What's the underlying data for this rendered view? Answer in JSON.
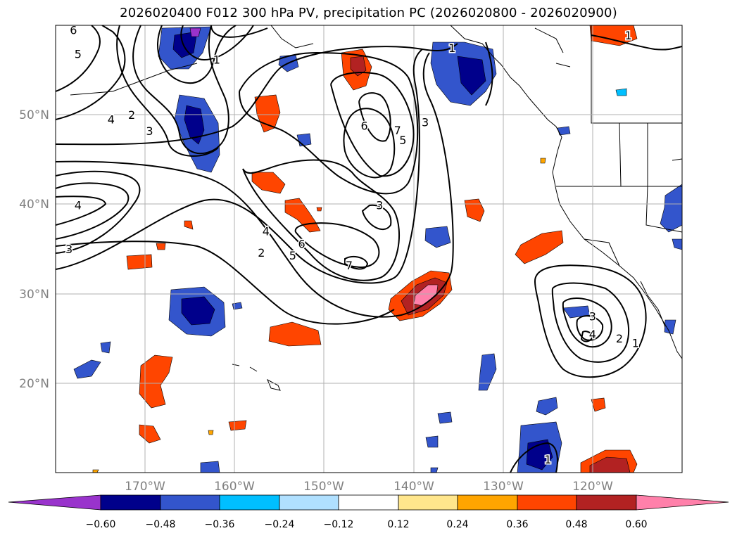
{
  "title": "2026020400 F012 300 hPa PV, precipitation PC (2026020800 - 2026020900)",
  "map": {
    "projection": "plate carree",
    "lon_range": [
      -180,
      -110
    ],
    "lat_range": [
      10,
      60
    ],
    "lon_ticks": [
      {
        "lon": -170,
        "label": "170°W"
      },
      {
        "lon": -160,
        "label": "160°W"
      },
      {
        "lon": -150,
        "label": "150°W"
      },
      {
        "lon": -140,
        "label": "140°W"
      },
      {
        "lon": -130,
        "label": "130°W"
      },
      {
        "lon": -120,
        "label": "120°W"
      }
    ],
    "lat_ticks": [
      {
        "lat": 20,
        "label": "20°N"
      },
      {
        "lat": 30,
        "label": "30°N"
      },
      {
        "lat": 40,
        "label": "40°N"
      },
      {
        "lat": 50,
        "label": "50°N"
      }
    ],
    "gridline_color": "#b0b0b0",
    "pv_contour_color": "#000000",
    "pv_contour_labels": [
      {
        "text": "6",
        "lon": -178,
        "lat": 59.5
      },
      {
        "text": "5",
        "lon": -177.5,
        "lat": 56.8
      },
      {
        "text": "1",
        "lon": -162,
        "lat": 56.2
      },
      {
        "text": "2",
        "lon": -171.5,
        "lat": 50
      },
      {
        "text": "4",
        "lon": -173.8,
        "lat": 49.5
      },
      {
        "text": "3",
        "lon": -169.5,
        "lat": 48.2
      },
      {
        "text": "4",
        "lon": -177.5,
        "lat": 39.9
      },
      {
        "text": "3",
        "lon": -178.5,
        "lat": 35
      },
      {
        "text": "4",
        "lon": -156.5,
        "lat": 37
      },
      {
        "text": "2",
        "lon": -157,
        "lat": 34.6
      },
      {
        "text": "5",
        "lon": -153.5,
        "lat": 34.3
      },
      {
        "text": "6",
        "lon": -152.5,
        "lat": 35.6
      },
      {
        "text": "7",
        "lon": -147.2,
        "lat": 33.2
      },
      {
        "text": "6",
        "lon": -145.5,
        "lat": 48.8
      },
      {
        "text": "7",
        "lon": -141.8,
        "lat": 48.3
      },
      {
        "text": "5",
        "lon": -141.2,
        "lat": 47.2
      },
      {
        "text": "3",
        "lon": -138.7,
        "lat": 49.2
      },
      {
        "text": "3",
        "lon": -143.8,
        "lat": 39.9
      },
      {
        "text": "1",
        "lon": -135.7,
        "lat": 57.5
      },
      {
        "text": "1",
        "lon": -116,
        "lat": 58.9
      },
      {
        "text": "3",
        "lon": -120,
        "lat": 27.5
      },
      {
        "text": "4",
        "lon": -120,
        "lat": 25.5
      },
      {
        "text": "2",
        "lon": -117,
        "lat": 25
      },
      {
        "text": "1",
        "lon": -115.2,
        "lat": 24.5
      },
      {
        "text": "1",
        "lon": -125,
        "lat": 11.5
      }
    ]
  },
  "colorbar": {
    "tick_labels": [
      "−0.60",
      "−0.48",
      "−0.36",
      "−0.24",
      "−0.12",
      "0.12",
      "0.24",
      "0.36",
      "0.48",
      "0.60"
    ],
    "colors": [
      "#9933cc",
      "#00008b",
      "#3355cc",
      "#00bfff",
      "#b0e0ff",
      "#ffffff",
      "#ffe68c",
      "#ffa500",
      "#ff4500",
      "#b22222",
      "#ff80aa"
    ]
  }
}
